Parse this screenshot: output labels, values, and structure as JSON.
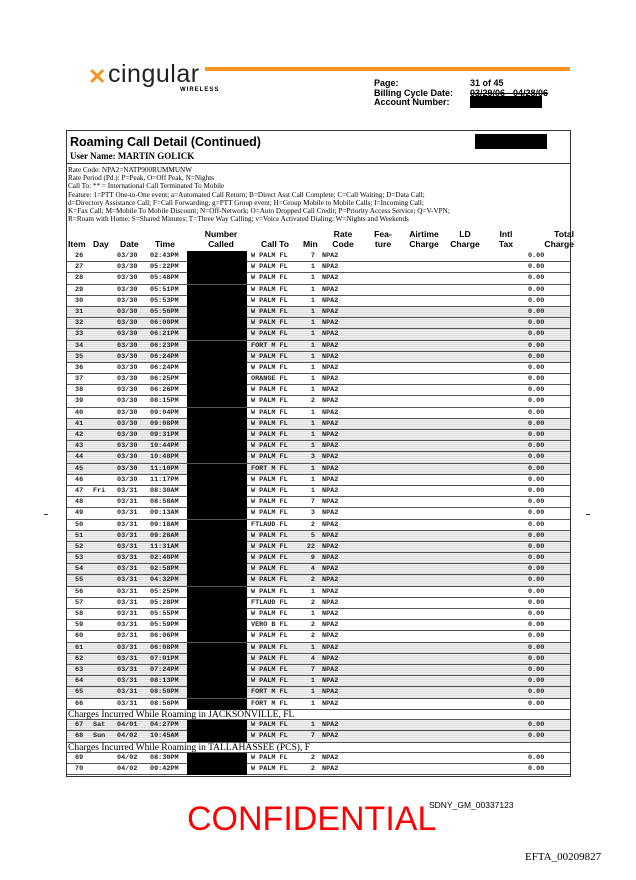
{
  "brand": {
    "logo_text": "cingular",
    "logo_sub": "WIRELESS",
    "accent": "#f7931e"
  },
  "meta": {
    "page_label": "Page:",
    "page_value": "31 of 45",
    "billing_label": "Billing Cycle Date:",
    "billing_value": "03/29/06 - 04/28/06",
    "account_label": "Account Number:"
  },
  "section": {
    "title": "Roaming Call Detail (Continued)",
    "user": "User Name: MARTIN GOLICK"
  },
  "legend": [
    "Rate Code: NPA2=NATP900RUMMUNW",
    "Rate Period (Pd.): P=Peak, O=Off Peak, N=Nights",
    "Call To: ** = International Call Terminated To Mobile",
    "Feature:  1=PTT One-to-One event; a=Automated Call Return; B=Direct Asst Call Complete; C=Call Waiting; D=Data Call;",
    "d=Directory Assistance Call; F=Call Forwarding; g=PTT Group event; H=Group Mobile to Mobile Calls; I=Incoming Call;",
    "K=Fax Call; M=Mobile To Mobile Discount; N=Off-Network; O=Auto Dropped Call Credit; P=Priority Access Service; Q=V-VPN;",
    "R=Roam with Home; S=Shared Minutes; T=Three Way Calling; v=Voice Activated Dialing; W=Nights and Weekends"
  ],
  "columns": {
    "item": "Item",
    "day": "Day",
    "date": "Date",
    "time": "Time",
    "number": "Number Called",
    "callto": "Call To",
    "min": "Min",
    "rate": "Rate Code",
    "feature": "Fea- ture",
    "airtime": "Airtime Charge",
    "ld": "LD Charge",
    "intl": "Intl Tax",
    "total": "Total Charge"
  },
  "groups": [
    {
      "label": "",
      "rows": [
        [
          "26",
          "",
          "03/30",
          "02:43PM",
          "W PALM FL",
          "7",
          "NPA2",
          "0.00",
          false
        ],
        [
          "27",
          "",
          "03/30",
          "05:22PM",
          "W PALM FL",
          "1",
          "NPA2",
          "0.00",
          false
        ],
        [
          "28",
          "",
          "03/30",
          "05:48PM",
          "W PALM FL",
          "1",
          "NPA2",
          "0.00",
          false
        ],
        [
          "29",
          "",
          "03/30",
          "05:51PM",
          "W PALM FL",
          "1",
          "NPA2",
          "0.00",
          false
        ],
        [
          "30",
          "",
          "03/30",
          "05:53PM",
          "W PALM FL",
          "1",
          "NPA2",
          "0.00",
          false
        ],
        [
          "31",
          "",
          "03/30",
          "05:56PM",
          "W PALM FL",
          "1",
          "NPA2",
          "0.00",
          true
        ],
        [
          "32",
          "",
          "03/30",
          "06:00PM",
          "W PALM FL",
          "1",
          "NPA2",
          "0.00",
          true
        ],
        [
          "33",
          "",
          "03/30",
          "06:21PM",
          "W PALM FL",
          "1",
          "NPA2",
          "0.00",
          true
        ],
        [
          "34",
          "",
          "03/30",
          "06:23PM",
          "FORT M FL",
          "1",
          "NPA2",
          "0.00",
          true
        ],
        [
          "35",
          "",
          "03/30",
          "06:24PM",
          "W PALM FL",
          "1",
          "NPA2",
          "0.00",
          true
        ],
        [
          "36",
          "",
          "03/30",
          "06:24PM",
          "W PALM FL",
          "1",
          "NPA2",
          "0.00",
          false
        ],
        [
          "37",
          "",
          "03/30",
          "06:25PM",
          "ORANGE FL",
          "1",
          "NPA2",
          "0.00",
          false
        ],
        [
          "38",
          "",
          "03/30",
          "06:26PM",
          "W PALM FL",
          "1",
          "NPA2",
          "0.00",
          false
        ],
        [
          "39",
          "",
          "03/30",
          "08:15PM",
          "W PALM FL",
          "2",
          "NPA2",
          "0.00",
          false
        ],
        [
          "40",
          "",
          "03/30",
          "09:04PM",
          "W PALM FL",
          "1",
          "NPA2",
          "0.00",
          false
        ],
        [
          "41",
          "",
          "03/30",
          "09:08PM",
          "W PALM FL",
          "1",
          "NPA2",
          "0.00",
          true
        ],
        [
          "42",
          "",
          "03/30",
          "09:31PM",
          "W PALM FL",
          "1",
          "NPA2",
          "0.00",
          true
        ],
        [
          "43",
          "",
          "03/30",
          "10:44PM",
          "W PALM FL",
          "1",
          "NPA2",
          "0.00",
          true
        ],
        [
          "44",
          "",
          "03/30",
          "10:48PM",
          "W PALM FL",
          "3",
          "NPA2",
          "0.00",
          true
        ],
        [
          "45",
          "",
          "03/30",
          "11:10PM",
          "FORT M FL",
          "1",
          "NPA2",
          "0.00",
          true
        ],
        [
          "46",
          "",
          "03/30",
          "11:17PM",
          "W PALM FL",
          "1",
          "NPA2",
          "0.00",
          false
        ],
        [
          "47",
          "Fri",
          "03/31",
          "08:30AM",
          "W PALM FL",
          "1",
          "NPA2",
          "0.00",
          false
        ],
        [
          "48",
          "",
          "03/31",
          "08:58AM",
          "W PALM FL",
          "7",
          "NPA2",
          "0.00",
          false
        ],
        [
          "49",
          "",
          "03/31",
          "09:13AM",
          "W PALM FL",
          "3",
          "NPA2",
          "0.00",
          false
        ],
        [
          "50",
          "",
          "03/31",
          "09:18AM",
          "FTLAUD FL",
          "2",
          "NPA2",
          "0.00",
          false
        ],
        [
          "51",
          "",
          "03/31",
          "09:28AM",
          "W PALM FL",
          "5",
          "NPA2",
          "0.00",
          true
        ],
        [
          "52",
          "",
          "03/31",
          "11:31AM",
          "W PALM FL",
          "22",
          "NPA2",
          "0.00",
          true
        ],
        [
          "53",
          "",
          "03/31",
          "02:40PM",
          "W PALM FL",
          "9",
          "NPA2",
          "0.00",
          true
        ],
        [
          "54",
          "",
          "03/31",
          "02:58PM",
          "W PALM FL",
          "4",
          "NPA2",
          "0.00",
          true
        ],
        [
          "55",
          "",
          "03/31",
          "04:32PM",
          "W PALM FL",
          "2",
          "NPA2",
          "0.00",
          true
        ],
        [
          "56",
          "",
          "03/31",
          "05:25PM",
          "W PALM FL",
          "1",
          "NPA2",
          "0.00",
          false
        ],
        [
          "57",
          "",
          "03/31",
          "05:28PM",
          "FTLAUD FL",
          "2",
          "NPA2",
          "0.00",
          false
        ],
        [
          "58",
          "",
          "03/31",
          "05:55PM",
          "W PALM FL",
          "1",
          "NPA2",
          "0.00",
          false
        ],
        [
          "59",
          "",
          "03/31",
          "05:59PM",
          "VERO B FL",
          "2",
          "NPA2",
          "0.00",
          false
        ],
        [
          "60",
          "",
          "03/31",
          "06:06PM",
          "W PALM FL",
          "2",
          "NPA2",
          "0.00",
          false
        ],
        [
          "61",
          "",
          "03/31",
          "06:08PM",
          "W PALM FL",
          "1",
          "NPA2",
          "0.00",
          true
        ],
        [
          "62",
          "",
          "03/31",
          "07:01PM",
          "W PALM FL",
          "4",
          "NPA2",
          "0.00",
          true
        ],
        [
          "63",
          "",
          "03/31",
          "07:24PM",
          "W PALM FL",
          "7",
          "NPA2",
          "0.00",
          true
        ],
        [
          "64",
          "",
          "03/31",
          "08:13PM",
          "W PALM FL",
          "1",
          "NPA2",
          "0.00",
          true
        ],
        [
          "65",
          "",
          "03/31",
          "08:50PM",
          "FORT M FL",
          "1",
          "NPA2",
          "0.00",
          true
        ],
        [
          "66",
          "",
          "03/31",
          "08:56PM",
          "FORT M FL",
          "1",
          "NPA2",
          "0.00",
          false
        ]
      ]
    },
    {
      "label": "Charges Incurred While Roaming in JACKSONVILLE, FL",
      "rows": [
        [
          "67",
          "Sat",
          "04/01",
          "04:27PM",
          "W PALM FL",
          "1",
          "NPA2",
          "0.00",
          true
        ],
        [
          "68",
          "Sun",
          "04/02",
          "10:45AM",
          "W PALM FL",
          "7",
          "NPA2",
          "0.00",
          true
        ]
      ]
    },
    {
      "label": "Charges Incurred While Roaming in TALLAHASSEE (PCS), F",
      "rows": [
        [
          "69",
          "",
          "04/02",
          "08:30PM",
          "W PALM FL",
          "2",
          "NPA2",
          "0.00",
          false
        ],
        [
          "70",
          "",
          "04/02",
          "09:42PM",
          "W PALM FL",
          "2",
          "NPA2",
          "0.00",
          false
        ]
      ]
    }
  ],
  "footer": {
    "confidential": "CONFIDENTIAL",
    "bates": "SDNY_GM_00337123",
    "efta": "EFTA_00209827"
  }
}
